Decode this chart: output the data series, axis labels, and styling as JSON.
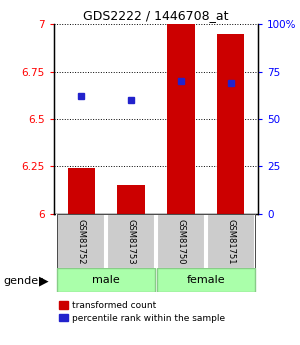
{
  "title": "GDS2222 / 1446708_at",
  "samples": [
    "GSM81752",
    "GSM81753",
    "GSM81750",
    "GSM81751"
  ],
  "gender": [
    "male",
    "male",
    "female",
    "female"
  ],
  "transformed_count": [
    6.24,
    6.15,
    7.0,
    6.95
  ],
  "percentile_rank": [
    0.62,
    0.6,
    0.7,
    0.69
  ],
  "y_min": 6.0,
  "y_max": 7.0,
  "y_ticks": [
    6.0,
    6.25,
    6.5,
    6.75,
    7.0
  ],
  "y_tick_labels": [
    "6",
    "6.25",
    "6.5",
    "6.75",
    "7"
  ],
  "pct_ticks": [
    0,
    0.25,
    0.5,
    0.75,
    1.0
  ],
  "pct_tick_labels": [
    "0",
    "25",
    "50",
    "75",
    "100%"
  ],
  "bar_color": "#cc0000",
  "dot_color": "#2222cc",
  "sample_bg": "#cccccc",
  "gender_bg": "#aaffaa",
  "bar_width": 0.55,
  "legend_red": "transformed count",
  "legend_blue": "percentile rank within the sample",
  "gender_label": "gender"
}
